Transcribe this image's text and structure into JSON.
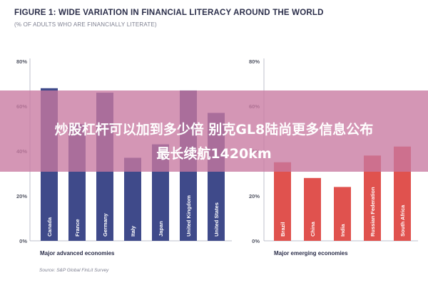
{
  "figure": {
    "title": "FIGURE 1: WIDE VARIATION IN FINANCIAL LITERACY AROUND THE WORLD",
    "subtitle": "(% OF ADULTS WHO ARE FINANCIALLY LITERATE)",
    "source": "Source: S&P Global FinLit Survey"
  },
  "overlay": {
    "line1": "炒股杠杆可以加到多少倍 别克GL8陆尚更多信息公布",
    "line2": "最长续航1420km"
  },
  "colors": {
    "advanced_bar": "#3f4a8a",
    "emerging_bar": "#e0524e",
    "title": "#2b2e4a",
    "overlay": "#c878a0"
  },
  "chart_data": [
    {
      "type": "bar",
      "xlabel": "Major advanced economies",
      "ylabel": "",
      "ylim": [
        0,
        80
      ],
      "yticks": [
        "0%",
        "20%",
        "40%",
        "60%",
        "80%"
      ],
      "grid": false,
      "categories": [
        "Canada",
        "France",
        "Germany",
        "Italy",
        "Japan",
        "United Kingdom",
        "United States"
      ],
      "values": [
        68,
        52,
        66,
        37,
        43,
        67,
        57
      ]
    },
    {
      "type": "bar",
      "xlabel": "Major emerging economies",
      "ylabel": "",
      "ylim": [
        0,
        80
      ],
      "yticks": [
        "0%",
        "20%",
        "40%",
        "60%",
        "80%"
      ],
      "grid": false,
      "categories": [
        "Brazil",
        "China",
        "India",
        "Russian Federation",
        "South Africa"
      ],
      "values": [
        35,
        28,
        24,
        38,
        42
      ]
    }
  ]
}
